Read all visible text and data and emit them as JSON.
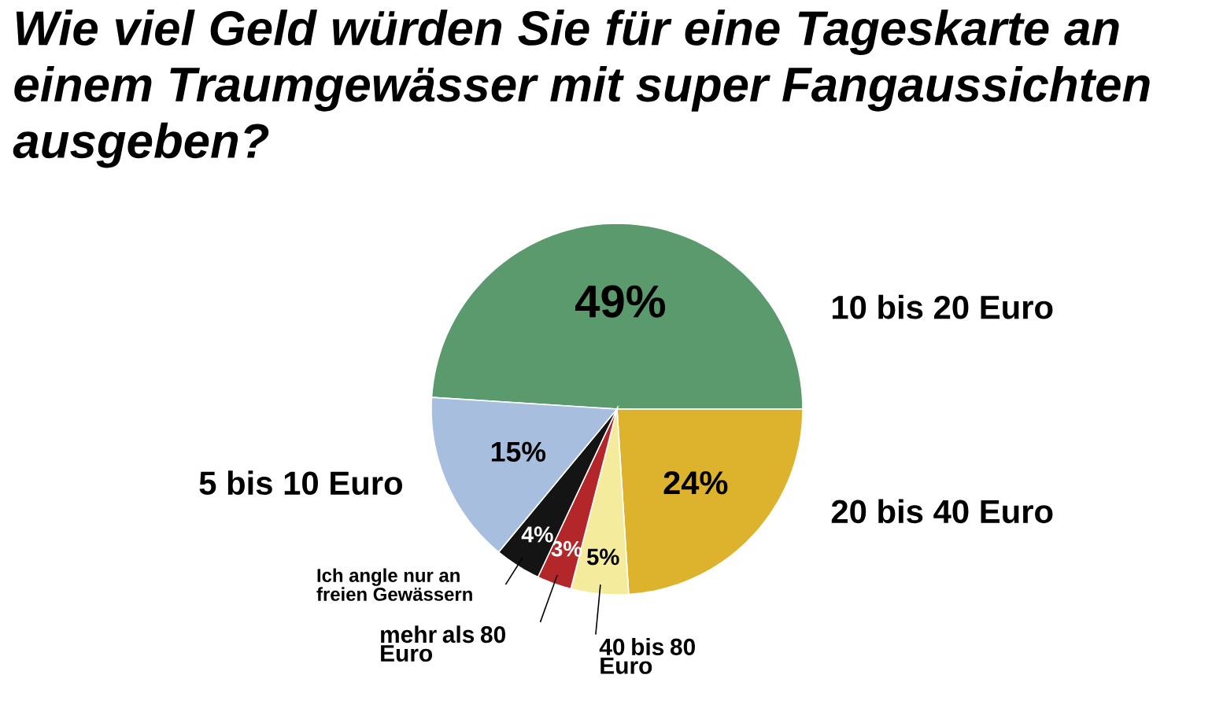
{
  "chart_data": {
    "type": "pie",
    "title": "Wie viel Geld würden Sie für eine Tageskarte an einem Traumgewässer mit super Fangaussichten ausgeben?",
    "categories": [
      "10 bis 20 Euro",
      "20 bis 40 Euro",
      "40 bis 80 Euro",
      "mehr als 80 Euro",
      "Ich angle nur an freien Gewässern",
      "5 bis 10 Euro"
    ],
    "values": [
      49,
      24,
      5,
      3,
      4,
      15
    ],
    "value_labels": [
      "49%",
      "24%",
      "5%",
      "3%",
      "4%",
      "15%"
    ],
    "colors": [
      "#5b9a6c",
      "#ddb22c",
      "#f4eb9c",
      "#b3262a",
      "#141414",
      "#a8bedf"
    ]
  }
}
